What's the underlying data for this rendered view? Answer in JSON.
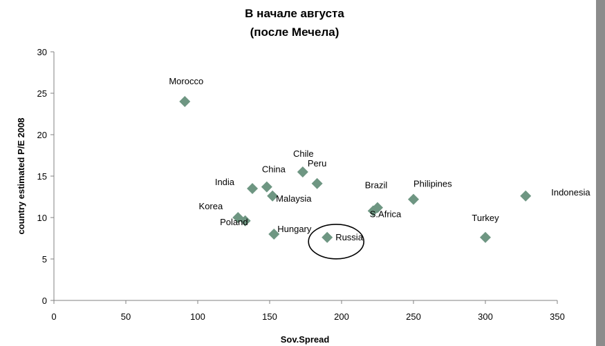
{
  "chart_data": {
    "type": "scatter",
    "title": [
      "В начале августа",
      "(после Мечела)"
    ],
    "xlabel": "Sov.Spread",
    "ylabel": "country estimated P/E 2008",
    "xlim": [
      0,
      350
    ],
    "ylim": [
      0,
      30
    ],
    "xticks": [
      0,
      50,
      100,
      150,
      200,
      250,
      300,
      350
    ],
    "yticks": [
      0,
      5,
      10,
      15,
      20,
      25,
      30
    ],
    "grid": false,
    "marker_color": "#6e9682",
    "points": [
      {
        "label": "Morocco",
        "x": 91,
        "y": 24
      },
      {
        "label": "India",
        "x": 138,
        "y": 13.5
      },
      {
        "label": "China",
        "x": 148,
        "y": 13.7
      },
      {
        "label": "Malaysia",
        "x": 152,
        "y": 12.6
      },
      {
        "label": "Chile",
        "x": 173,
        "y": 15.5
      },
      {
        "label": "Peru",
        "x": 183,
        "y": 14.1
      },
      {
        "label": "Korea",
        "x": 128,
        "y": 10
      },
      {
        "label": "Poland",
        "x": 133,
        "y": 9.6
      },
      {
        "label": "Hungary",
        "x": 153,
        "y": 8
      },
      {
        "label": "Russia",
        "x": 190,
        "y": 7.6
      },
      {
        "label": "Brazil",
        "x": 225,
        "y": 11.2
      },
      {
        "label": "S.Africa",
        "x": 222,
        "y": 10.8
      },
      {
        "label": "Philipines",
        "x": 250,
        "y": 12.2
      },
      {
        "label": "Turkey",
        "x": 300,
        "y": 7.6
      },
      {
        "label": "Indonesia",
        "x": 328,
        "y": 12.6
      }
    ],
    "highlight": {
      "label": "Russia",
      "shape": "ellipse"
    }
  }
}
